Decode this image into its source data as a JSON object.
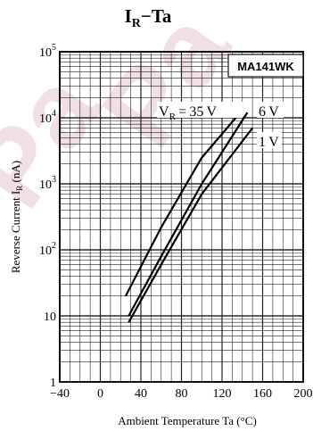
{
  "chart_data": {
    "type": "line",
    "title": "I",
    "title_sub": "R",
    "title_rest": "−Ta",
    "device_label": "MA141WK",
    "xlabel": "Ambient Temperature Ta (°C)",
    "ylabel_main": "Reverse Current I",
    "ylabel_sub": "R",
    "ylabel_unit": " (nA)",
    "xlim": [
      -40,
      200
    ],
    "ylim": [
      1,
      100000
    ],
    "y_scale": "log",
    "grid": true,
    "x_ticks": [
      -40,
      0,
      40,
      80,
      120,
      160,
      200
    ],
    "x_tick_labels": [
      "−40",
      "0",
      "40",
      "80",
      "120",
      "160",
      "200"
    ],
    "y_ticks": [
      1,
      10,
      100,
      1000,
      10000,
      100000
    ],
    "y_tick_labels": {
      "t1": {
        "base": "1",
        "exp": ""
      },
      "t10": {
        "base": "10",
        "exp": ""
      },
      "t100": {
        "base": "10",
        "exp": "2"
      },
      "t1000": {
        "base": "10",
        "exp": "3"
      },
      "t10000": {
        "base": "10",
        "exp": "4"
      },
      "t100000": {
        "base": "10",
        "exp": "5"
      }
    },
    "annotation_35v": {
      "v": "V",
      "sub": "R",
      "rest": " = 35 V"
    },
    "annotation_6v": "6 V",
    "annotation_1v": "1 V",
    "series": [
      {
        "x": [
          25,
          60,
          100,
          138
        ],
        "y": [
          20,
          220,
          2500,
          12000
        ]
      },
      {
        "x": [
          28,
          60,
          100,
          145
        ],
        "y": [
          10,
          80,
          1000,
          12000
        ]
      },
      {
        "x": [
          28,
          60,
          100,
          150
        ],
        "y": [
          8,
          60,
          700,
          7000
        ]
      }
    ]
  }
}
